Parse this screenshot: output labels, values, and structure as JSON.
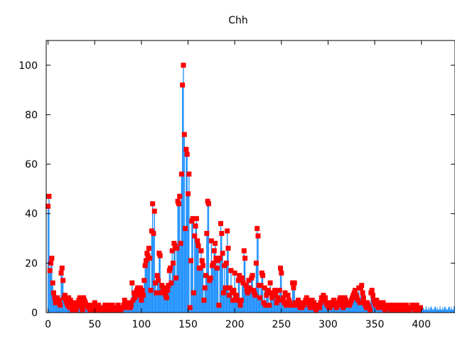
{
  "chart_data": {
    "type": "bar",
    "title": "Chh",
    "xlabel": "",
    "ylabel": "",
    "xlim": [
      -2,
      436
    ],
    "ylim": [
      0,
      110
    ],
    "x_ticks": [
      0,
      50,
      100,
      150,
      200,
      250,
      300,
      350,
      400
    ],
    "y_ticks": [
      0,
      20,
      40,
      60,
      80,
      100
    ],
    "grid": false,
    "bar_color": "#1e90ff",
    "marker_color": "#ff0000",
    "values": [
      43,
      47,
      17,
      20,
      22,
      12,
      8,
      6,
      4,
      5,
      6,
      4,
      5,
      3,
      16,
      18,
      13,
      6,
      7,
      5,
      4,
      3,
      6,
      2,
      5,
      3,
      1,
      4,
      2,
      3,
      1,
      4,
      3,
      5,
      6,
      4,
      2,
      1,
      6,
      5,
      4,
      3,
      3,
      2,
      2,
      1,
      3,
      1,
      2,
      1,
      4,
      3,
      2,
      1,
      3,
      2,
      2,
      1,
      2,
      1,
      2,
      3,
      2,
      1,
      3,
      2,
      1,
      2,
      2,
      3,
      2,
      1,
      2,
      2,
      1,
      3,
      2,
      2,
      1,
      2,
      2,
      3,
      5,
      4,
      3,
      2,
      3,
      4,
      2,
      3,
      12,
      5,
      8,
      6,
      7,
      9,
      10,
      8,
      7,
      10,
      5,
      9,
      7,
      13,
      19,
      21,
      24,
      23,
      26,
      22,
      9,
      33,
      44,
      32,
      41,
      12,
      8,
      15,
      13,
      24,
      23,
      8,
      11,
      9,
      8,
      10,
      7,
      6,
      9,
      11,
      17,
      18,
      12,
      25,
      20,
      28,
      27,
      14,
      26,
      45,
      44,
      47,
      28,
      56,
      92,
      100,
      72,
      34,
      66,
      64,
      48,
      56,
      2,
      21,
      37,
      38,
      8,
      31,
      35,
      38,
      29,
      27,
      18,
      18,
      25,
      21,
      19,
      5,
      10,
      15,
      32,
      45,
      44,
      13,
      14,
      29,
      19,
      20,
      25,
      28,
      22,
      18,
      21,
      3,
      22,
      36,
      32,
      24,
      8,
      19,
      10,
      20,
      33,
      26,
      7,
      10,
      17,
      8,
      5,
      9,
      16,
      6,
      7,
      5,
      13,
      15,
      3,
      5,
      14,
      12,
      25,
      22,
      11,
      9,
      8,
      13,
      10,
      9,
      14,
      15,
      9,
      8,
      7,
      20,
      34,
      31,
      11,
      6,
      11,
      16,
      15,
      4,
      10,
      3,
      7,
      8,
      9,
      3,
      12,
      8,
      6,
      7,
      8,
      9,
      7,
      4,
      6,
      5,
      9,
      18,
      16,
      5,
      6,
      4,
      8,
      3,
      4,
      7,
      5,
      4,
      3,
      3,
      12,
      10,
      12,
      4,
      3,
      4,
      5,
      3,
      2,
      3,
      2,
      4,
      3,
      4,
      5,
      6,
      5,
      4,
      3,
      2,
      4,
      5,
      3,
      4,
      2,
      1,
      3,
      3,
      2,
      2,
      4,
      6,
      5,
      7,
      5,
      6,
      4,
      3,
      3,
      2,
      2,
      4,
      3,
      4,
      5,
      3,
      4,
      2,
      4,
      3,
      5,
      6,
      4,
      3,
      2,
      4,
      6,
      5,
      4,
      3,
      3,
      3,
      4,
      5,
      6,
      7,
      8,
      9,
      7,
      6,
      5,
      10,
      4,
      10,
      11,
      8,
      6,
      4,
      3,
      2,
      4,
      3,
      2,
      1,
      8,
      9,
      7,
      5,
      4,
      3,
      5,
      3,
      2,
      3,
      4,
      2,
      3,
      4,
      2,
      1,
      2,
      3,
      2,
      3,
      2,
      1,
      2,
      2,
      3,
      2,
      1,
      2,
      2,
      3,
      2,
      1,
      2,
      3,
      2,
      2,
      1,
      2,
      3,
      2,
      2,
      1,
      2,
      2,
      3,
      2,
      2,
      1,
      2,
      3,
      2,
      1,
      2,
      2
    ]
  }
}
